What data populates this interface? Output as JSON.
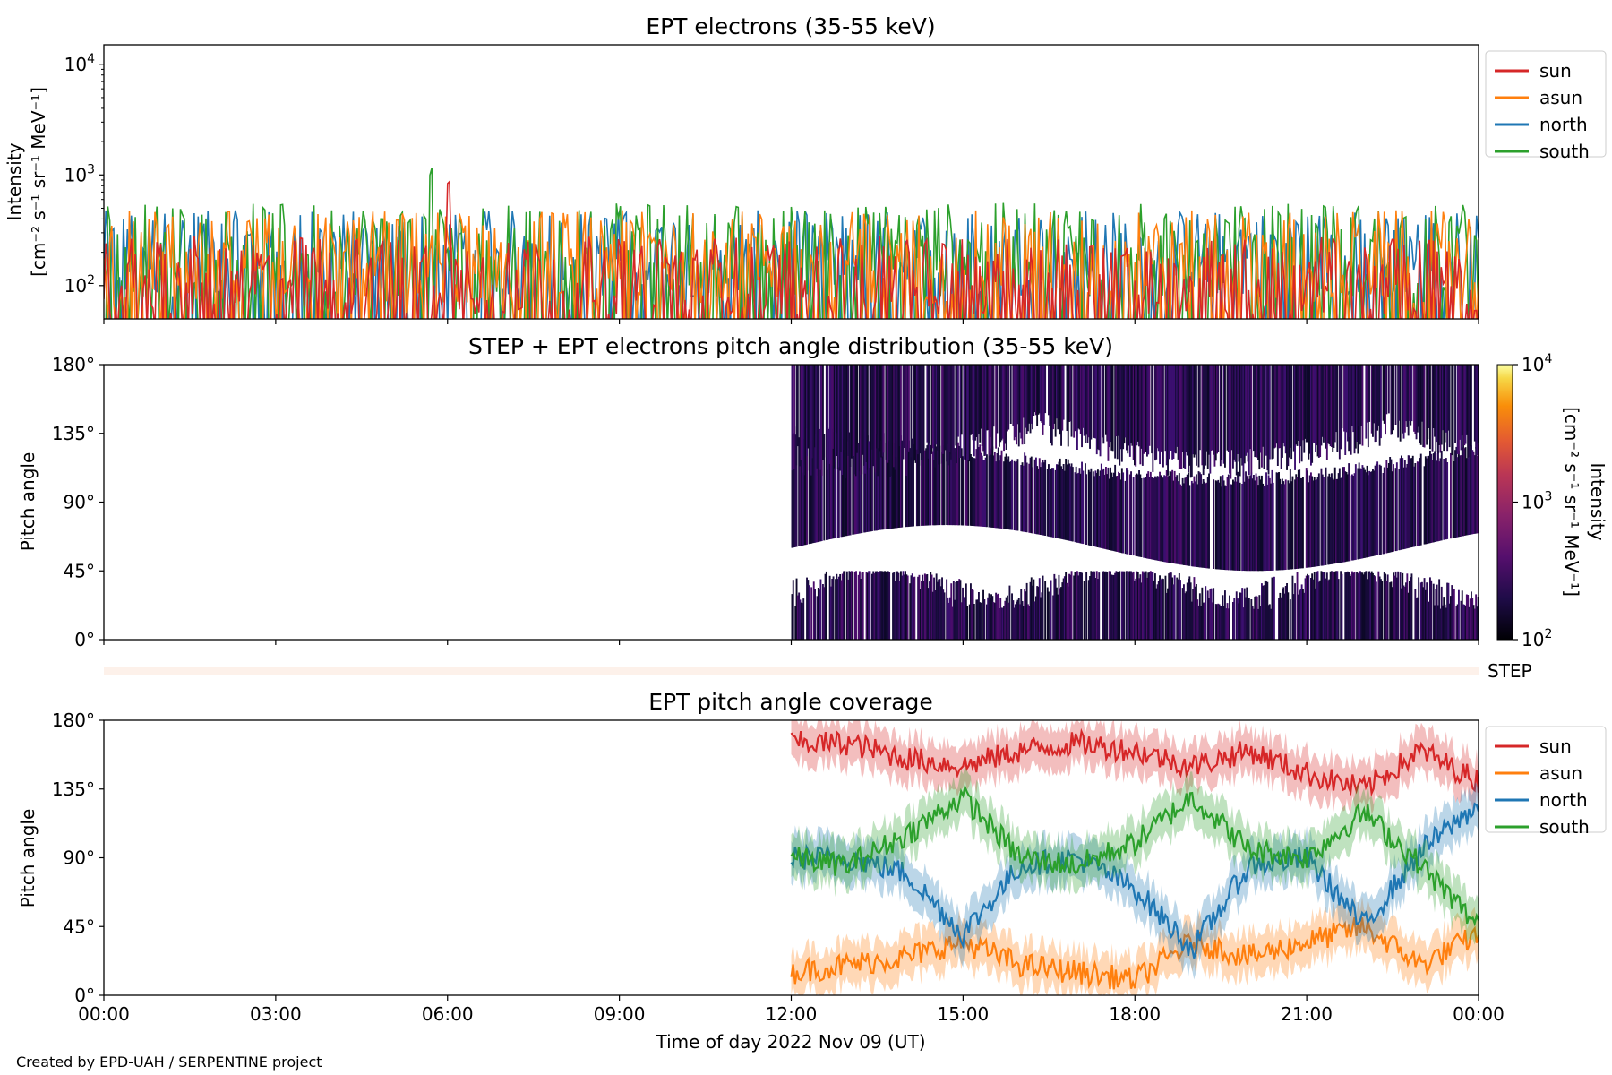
{
  "colors": {
    "sun": "#d62728",
    "asun": "#ff7f0e",
    "north": "#1f77b4",
    "south": "#2ca02c",
    "step_band": "#fdf1ea"
  },
  "figure": {
    "credit": "Created by EPD-UAH / SERPENTINE project",
    "xlabel": "Time of day 2022 Nov 09 (UT)",
    "x_tick_labels": [
      "00:00",
      "03:00",
      "06:00",
      "09:00",
      "12:00",
      "15:00",
      "18:00",
      "21:00",
      "00:00"
    ],
    "step_label": "STEP"
  },
  "chart_data": [
    {
      "type": "line",
      "title": "EPT electrons (35-55 keV)",
      "ylabel": "Intensity",
      "ylabel_units": "[cm⁻² s⁻¹ sr⁻¹ MeV⁻¹]",
      "yscale": "log",
      "ylim": [
        50,
        15000
      ],
      "xlim_hours": [
        0,
        24
      ],
      "y_tick_labels": [
        {
          "base": "10",
          "exp": "2",
          "value": 100
        },
        {
          "base": "10",
          "exp": "3",
          "value": 1000
        },
        {
          "base": "10",
          "exp": "4",
          "value": 10000
        }
      ],
      "legend": {
        "placement": "right",
        "entries": [
          "sun",
          "asun",
          "north",
          "south"
        ]
      },
      "series": [
        {
          "name": "sun",
          "typical_range": [
            55,
            280
          ],
          "peak": {
            "hour": 6.02,
            "value": 950
          }
        },
        {
          "name": "asun",
          "typical_range": [
            70,
            480
          ]
        },
        {
          "name": "north",
          "typical_range": [
            80,
            480
          ]
        },
        {
          "name": "south",
          "typical_range": [
            80,
            560
          ],
          "peak": {
            "hour": 5.72,
            "value": 1200
          }
        }
      ]
    },
    {
      "type": "heatmap",
      "title": "STEP + EPT electrons pitch angle distribution (35-55 keV)",
      "ylabel": "Pitch angle",
      "ylim": [
        0,
        180
      ],
      "y_tick_labels": [
        "0°",
        "45°",
        "90°",
        "135°",
        "180°"
      ],
      "data_start_hour": 12,
      "data_end_hour": 24,
      "colorbar": {
        "label": "Intensity",
        "units": "[cm⁻² s⁻¹ sr⁻¹ MeV⁻¹]",
        "scale": "log",
        "range": [
          100,
          10000
        ],
        "tick_labels": [
          {
            "base": "10",
            "exp": "2"
          },
          {
            "base": "10",
            "exp": "3"
          },
          {
            "base": "10",
            "exp": "4"
          }
        ],
        "colormap": "inferno"
      }
    },
    {
      "type": "line",
      "title": "EPT pitch angle coverage",
      "ylabel": "Pitch angle",
      "ylim": [
        0,
        180
      ],
      "y_tick_labels": [
        "0°",
        "45°",
        "90°",
        "135°",
        "180°"
      ],
      "data_start_hour": 12,
      "legend": {
        "placement": "right",
        "entries": [
          "sun",
          "asun",
          "north",
          "south"
        ]
      },
      "series": [
        {
          "name": "sun",
          "x_hours": [
            12,
            13,
            14,
            15,
            16,
            17,
            18,
            19,
            20,
            21,
            22,
            23,
            24
          ],
          "values": [
            165,
            165,
            155,
            150,
            160,
            165,
            160,
            150,
            160,
            145,
            135,
            160,
            140
          ]
        },
        {
          "name": "asun",
          "x_hours": [
            12,
            13,
            14,
            15,
            16,
            17,
            18,
            19,
            20,
            21,
            22,
            23,
            24
          ],
          "values": [
            15,
            20,
            25,
            35,
            20,
            15,
            10,
            35,
            25,
            35,
            45,
            20,
            40
          ]
        },
        {
          "name": "north",
          "x_hours": [
            12,
            13,
            14,
            15,
            16,
            17,
            18,
            19,
            20,
            21,
            22,
            23,
            24
          ],
          "values": [
            90,
            90,
            80,
            40,
            85,
            90,
            70,
            30,
            85,
            90,
            45,
            95,
            125
          ]
        },
        {
          "name": "south",
          "x_hours": [
            12,
            13,
            14,
            15,
            16,
            17,
            18,
            19,
            20,
            21,
            22,
            23,
            24
          ],
          "values": [
            90,
            85,
            105,
            130,
            90,
            85,
            100,
            130,
            95,
            90,
            120,
            85,
            45
          ]
        }
      ]
    }
  ]
}
